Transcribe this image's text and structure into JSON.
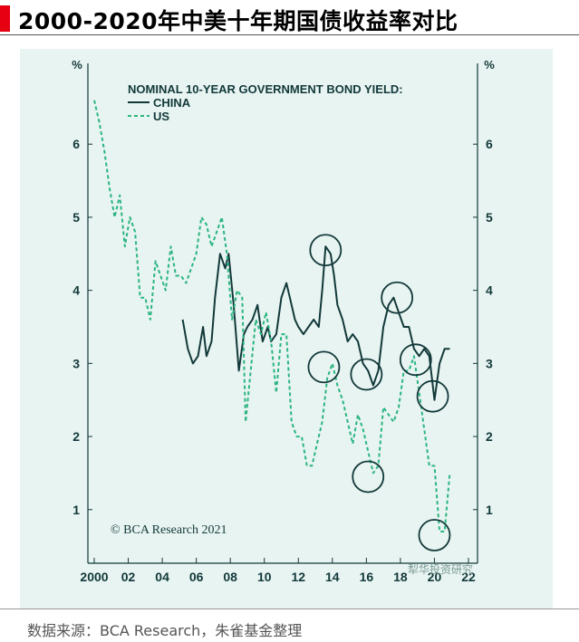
{
  "title": "2000-2020年中美十年期国债收益率对比",
  "footer": "数据来源：BCA Research，朱雀基金整理",
  "watermark": "犁华投资研究",
  "colors": {
    "title_mark": "#e60012",
    "panel": "#e8f4f1",
    "series": "#12393a",
    "us": "#2bb582",
    "circle": "#12393a"
  },
  "chart_data": {
    "type": "line",
    "title": "NOMINAL 10-YEAR GOVERNMENT BOND YIELD:",
    "ylabel_left": "%",
    "ylabel_right": "%",
    "xlim": [
      2000,
      22
    ],
    "ylim": [
      0,
      7
    ],
    "x_ticks": [
      "2000",
      "02",
      "04",
      "06",
      "08",
      "10",
      "12",
      "14",
      "16",
      "18",
      "20",
      "22"
    ],
    "y_ticks": [
      "1",
      "2",
      "3",
      "4",
      "5",
      "6"
    ],
    "credit": "© BCA Research 2021",
    "legend_position": "top-left",
    "series": [
      {
        "name": "CHINA",
        "style": "solid",
        "x": [
          2005.2,
          2005.5,
          2005.8,
          2006.1,
          2006.4,
          2006.6,
          2006.9,
          2007.1,
          2007.4,
          2007.7,
          2007.9,
          2008.2,
          2008.5,
          2008.8,
          2009.0,
          2009.3,
          2009.6,
          2009.9,
          2010.2,
          2010.4,
          2010.7,
          2011.0,
          2011.3,
          2011.5,
          2011.8,
          2012.0,
          2012.3,
          2012.6,
          2012.9,
          2013.2,
          2013.4,
          2013.6,
          2013.9,
          2014.1,
          2014.3,
          2014.6,
          2014.9,
          2015.2,
          2015.5,
          2015.8,
          2016.1,
          2016.4,
          2016.7,
          2017.0,
          2017.3,
          2017.6,
          2017.9,
          2018.2,
          2018.5,
          2018.8,
          2019.1,
          2019.4,
          2019.7,
          2020.0,
          2020.3,
          2020.6,
          2020.9
        ],
        "values": [
          3.6,
          3.2,
          3.0,
          3.1,
          3.5,
          3.1,
          3.3,
          3.9,
          4.5,
          4.3,
          4.5,
          3.8,
          2.9,
          3.4,
          3.5,
          3.6,
          3.8,
          3.3,
          3.5,
          3.3,
          3.4,
          3.9,
          4.1,
          3.9,
          3.6,
          3.5,
          3.4,
          3.5,
          3.6,
          3.5,
          4.0,
          4.6,
          4.5,
          4.2,
          3.8,
          3.6,
          3.3,
          3.4,
          3.3,
          3.0,
          2.9,
          2.7,
          2.9,
          3.5,
          3.8,
          3.9,
          3.7,
          3.5,
          3.5,
          3.2,
          3.1,
          3.2,
          3.1,
          2.5,
          3.0,
          3.2,
          3.2
        ]
      },
      {
        "name": "US",
        "style": "dashed",
        "x": [
          2000.0,
          2000.3,
          2000.6,
          2000.9,
          2001.2,
          2001.5,
          2001.8,
          2002.1,
          2002.4,
          2002.7,
          2003.0,
          2003.3,
          2003.6,
          2003.9,
          2004.2,
          2004.5,
          2004.8,
          2005.1,
          2005.4,
          2005.7,
          2006.0,
          2006.3,
          2006.6,
          2006.9,
          2007.2,
          2007.5,
          2007.8,
          2008.1,
          2008.4,
          2008.7,
          2008.9,
          2009.2,
          2009.5,
          2009.8,
          2010.1,
          2010.4,
          2010.7,
          2011.0,
          2011.3,
          2011.6,
          2011.9,
          2012.2,
          2012.5,
          2012.8,
          2013.1,
          2013.4,
          2013.7,
          2014.0,
          2014.3,
          2014.6,
          2014.9,
          2015.2,
          2015.5,
          2015.8,
          2016.1,
          2016.4,
          2016.7,
          2017.0,
          2017.3,
          2017.6,
          2017.9,
          2018.2,
          2018.5,
          2018.8,
          2019.1,
          2019.4,
          2019.7,
          2020.0,
          2020.3,
          2020.6,
          2020.9
        ],
        "values": [
          6.6,
          6.3,
          5.9,
          5.4,
          5.0,
          5.3,
          4.6,
          5.0,
          4.8,
          3.9,
          3.9,
          3.6,
          4.4,
          4.2,
          4.0,
          4.6,
          4.2,
          4.2,
          4.1,
          4.3,
          4.5,
          5.0,
          4.9,
          4.6,
          4.8,
          5.0,
          4.5,
          3.6,
          4.0,
          3.9,
          2.2,
          2.9,
          3.6,
          3.4,
          3.7,
          3.3,
          2.6,
          3.4,
          3.4,
          2.2,
          2.0,
          2.0,
          1.6,
          1.6,
          1.9,
          2.2,
          2.8,
          3.0,
          2.7,
          2.5,
          2.2,
          1.9,
          2.3,
          2.1,
          1.8,
          1.5,
          1.6,
          2.4,
          2.3,
          2.2,
          2.4,
          2.9,
          2.9,
          3.1,
          2.6,
          2.1,
          1.6,
          1.6,
          0.7,
          0.7,
          1.5
        ]
      },
      {
        "name": "",
        "style": "circle",
        "x": [
          2013.6,
          2013.5,
          2016.0,
          2016.1,
          2017.8,
          2018.9,
          2019.9,
          2020.0
        ],
        "values": [
          4.55,
          2.95,
          2.85,
          1.45,
          3.9,
          3.05,
          2.55,
          0.65
        ]
      }
    ]
  }
}
